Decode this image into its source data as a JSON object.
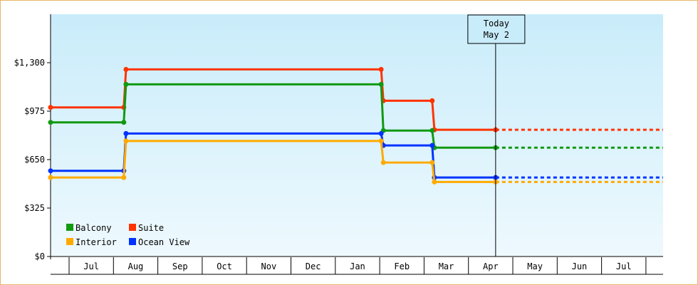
{
  "chart_data": {
    "type": "line",
    "step": true,
    "x_unit": "month",
    "months": [
      "Jul",
      "Aug",
      "Sep",
      "Oct",
      "Nov",
      "Dec",
      "Jan",
      "Feb",
      "Mar",
      "Apr",
      "May",
      "Jun",
      "Jul"
    ],
    "x_range": [
      0,
      13.8
    ],
    "ylim": [
      0,
      1625
    ],
    "yticks": [
      {
        "value": 0,
        "label": "$0"
      },
      {
        "value": 325,
        "label": "$325"
      },
      {
        "value": 650,
        "label": "$650"
      },
      {
        "value": 975,
        "label": "$975"
      },
      {
        "value": 1300,
        "label": "$1,300"
      }
    ],
    "today": {
      "line1": "Today",
      "line2": "May 2",
      "x": 10.03
    },
    "legend": {
      "position": "bottom-left"
    },
    "series": [
      {
        "name": "Suite",
        "color": "#ff3300",
        "points": [
          [
            0,
            1000
          ],
          [
            1.65,
            1000
          ],
          [
            1.7,
            1255
          ],
          [
            7.45,
            1255
          ],
          [
            7.5,
            1045
          ],
          [
            8.6,
            1045
          ],
          [
            8.65,
            850
          ],
          [
            10.03,
            850
          ]
        ],
        "projection": [
          10.03,
          13.8,
          850
        ]
      },
      {
        "name": "Balcony",
        "color": "#119911",
        "points": [
          [
            0,
            900
          ],
          [
            1.65,
            900
          ],
          [
            1.7,
            1155
          ],
          [
            7.45,
            1155
          ],
          [
            7.5,
            845
          ],
          [
            8.6,
            845
          ],
          [
            8.65,
            730
          ],
          [
            10.03,
            730
          ]
        ],
        "projection": [
          10.03,
          13.8,
          730
        ]
      },
      {
        "name": "Ocean View",
        "color": "#0033ff",
        "points": [
          [
            0,
            575
          ],
          [
            1.65,
            575
          ],
          [
            1.7,
            825
          ],
          [
            7.45,
            825
          ],
          [
            7.5,
            745
          ],
          [
            8.6,
            745
          ],
          [
            8.65,
            530
          ],
          [
            10.03,
            530
          ]
        ],
        "projection": [
          10.03,
          13.8,
          530
        ]
      },
      {
        "name": "Interior",
        "color": "#ffaa00",
        "points": [
          [
            0,
            530
          ],
          [
            1.65,
            530
          ],
          [
            1.7,
            775
          ],
          [
            7.45,
            775
          ],
          [
            7.5,
            630
          ],
          [
            8.6,
            630
          ],
          [
            8.65,
            500
          ],
          [
            10.03,
            500
          ]
        ],
        "projection": [
          10.03,
          13.8,
          500
        ]
      }
    ],
    "legend_order": [
      "Balcony",
      "Suite",
      "Interior",
      "Ocean View"
    ]
  }
}
